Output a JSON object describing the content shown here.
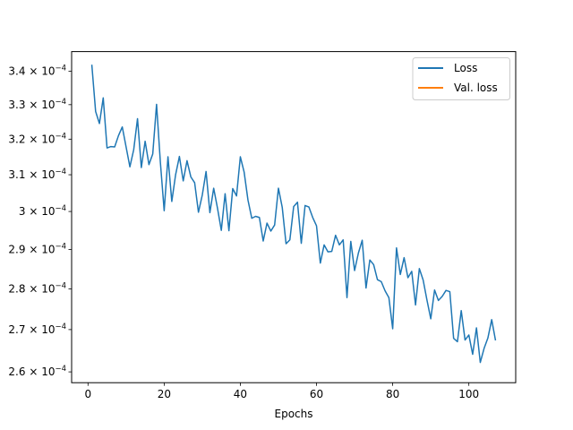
{
  "chart_data": {
    "type": "line",
    "title": "",
    "xlabel": "Epochs",
    "ylabel": "",
    "xlim": [
      -4.3,
      112.3
    ],
    "ylim": [
      0.0002575,
      0.000346
    ],
    "x_ticks": [
      0,
      20,
      40,
      60,
      80,
      100
    ],
    "x_tick_labels": [
      "0",
      "20",
      "40",
      "60",
      "80",
      "100"
    ],
    "y_ticks": [
      0.00026,
      0.00027,
      0.00028,
      0.00029,
      0.0003,
      0.00031,
      0.00032,
      0.00033,
      0.00034
    ],
    "y_tick_labels": [
      {
        "mantissa": "2.6",
        "times": "×",
        "base": "10",
        "exp": "−4"
      },
      {
        "mantissa": "2.7",
        "times": "×",
        "base": "10",
        "exp": "−4"
      },
      {
        "mantissa": "2.8",
        "times": "×",
        "base": "10",
        "exp": "−4"
      },
      {
        "mantissa": "2.9",
        "times": "×",
        "base": "10",
        "exp": "−4"
      },
      {
        "mantissa": "3",
        "times": "×",
        "base": "10",
        "exp": "−4"
      },
      {
        "mantissa": "3.1",
        "times": "×",
        "base": "10",
        "exp": "−4"
      },
      {
        "mantissa": "3.2",
        "times": "×",
        "base": "10",
        "exp": "−4"
      },
      {
        "mantissa": "3.3",
        "times": "×",
        "base": "10",
        "exp": "−4"
      },
      {
        "mantissa": "3.4",
        "times": "×",
        "base": "10",
        "exp": "−4"
      }
    ],
    "y_scale": "log",
    "grid": false,
    "legend_position": "top-right",
    "series": [
      {
        "name": "Loss",
        "color": "#1f77b4",
        "x": [
          1,
          2,
          3,
          4,
          5,
          6,
          7,
          8,
          9,
          10,
          11,
          12,
          13,
          14,
          15,
          16,
          17,
          18,
          19,
          20,
          21,
          22,
          23,
          24,
          25,
          26,
          27,
          28,
          29,
          30,
          31,
          32,
          33,
          34,
          35,
          36,
          37,
          38,
          39,
          40,
          41,
          42,
          43,
          44,
          45,
          46,
          47,
          48,
          49,
          50,
          51,
          52,
          53,
          54,
          55,
          56,
          57,
          58,
          59,
          60,
          61,
          62,
          63,
          64,
          65,
          66,
          67,
          68,
          69,
          70,
          71,
          72,
          73,
          74,
          75,
          76,
          77,
          78,
          79,
          80,
          81,
          82,
          83,
          84,
          85,
          86,
          87,
          88,
          89,
          90,
          91,
          92,
          93,
          94,
          95,
          96,
          97,
          98,
          99,
          100,
          101,
          102,
          103,
          104,
          105,
          106,
          107
        ],
        "values": [
          0.000342,
          0.000328,
          0.0003245,
          0.000332,
          0.0003175,
          0.0003179,
          0.0003178,
          0.000321,
          0.0003235,
          0.0003178,
          0.0003122,
          0.000317,
          0.0003259,
          0.000312,
          0.0003194,
          0.0003128,
          0.0003158,
          0.0003301,
          0.0003135,
          0.0003002,
          0.000315,
          0.0003027,
          0.00031,
          0.0003151,
          0.0003083,
          0.0003139,
          0.0003094,
          0.0003078,
          0.0002998,
          0.0003044,
          0.0003109,
          0.0002997,
          0.0003063,
          0.0003009,
          0.000295,
          0.0003048,
          0.0002949,
          0.0003062,
          0.0003042,
          0.000315,
          0.0003107,
          0.0003031,
          0.0002982,
          0.0002987,
          0.0002984,
          0.0002922,
          0.0002969,
          0.0002948,
          0.0002964,
          0.0003063,
          0.0003011,
          0.0002915,
          0.0002925,
          0.0003013,
          0.0003025,
          0.0002916,
          0.0003016,
          0.0003012,
          0.0002984,
          0.0002962,
          0.0002865,
          0.0002912,
          0.0002894,
          0.0002895,
          0.0002937,
          0.0002912,
          0.0002925,
          0.0002778,
          0.0002921,
          0.0002846,
          0.0002891,
          0.0002924,
          0.0002802,
          0.0002873,
          0.0002861,
          0.0002823,
          0.0002818,
          0.0002795,
          0.0002778,
          0.0002702,
          0.0002904,
          0.0002836,
          0.0002879,
          0.0002828,
          0.0002844,
          0.000276,
          0.0002851,
          0.0002822,
          0.0002772,
          0.0002726,
          0.0002797,
          0.0002771,
          0.0002781,
          0.0002796,
          0.0002793,
          0.0002679,
          0.0002671,
          0.0002746,
          0.0002675,
          0.0002687,
          0.0002641,
          0.0002704,
          0.0002622,
          0.0002655,
          0.000268,
          0.0002724,
          0.0002674
        ]
      },
      {
        "name": "Val. loss",
        "color": "#ff7f0e",
        "x": [],
        "values": []
      }
    ]
  }
}
